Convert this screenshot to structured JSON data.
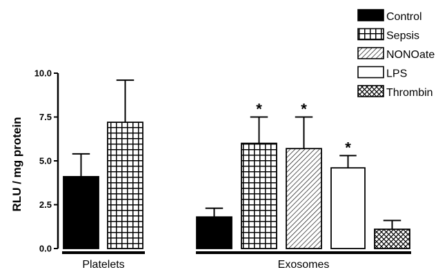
{
  "chart_data": {
    "type": "bar",
    "ylabel": "RLU / mg protein",
    "ylim": [
      0,
      10
    ],
    "yticks": [
      "0.0",
      "2.5",
      "5.0",
      "7.5",
      "10.0"
    ],
    "groups": [
      {
        "name": "Platelets",
        "bars": [
          {
            "series": "Control",
            "value": 4.1,
            "error": 1.3,
            "star": ""
          },
          {
            "series": "Sepsis",
            "value": 7.2,
            "error": 2.4,
            "star": ""
          }
        ]
      },
      {
        "name": "Exosomes",
        "bars": [
          {
            "series": "Control",
            "value": 1.8,
            "error": 0.5,
            "star": ""
          },
          {
            "series": "Sepsis",
            "value": 6.0,
            "error": 1.5,
            "star": "*"
          },
          {
            "series": "NONOate",
            "value": 5.7,
            "error": 1.8,
            "star": "*"
          },
          {
            "series": "LPS",
            "value": 4.6,
            "error": 0.7,
            "star": "*"
          },
          {
            "series": "Thrombin",
            "value": 1.1,
            "error": 0.5,
            "star": ""
          }
        ]
      }
    ],
    "legend": {
      "position": "top-right",
      "entries": [
        {
          "label": "Control",
          "pattern": "solid"
        },
        {
          "label": "Sepsis",
          "pattern": "grid"
        },
        {
          "label": "NONOate",
          "pattern": "diagonal"
        },
        {
          "label": "LPS",
          "pattern": "empty"
        },
        {
          "label": "Thrombin",
          "pattern": "crosshatch"
        }
      ]
    },
    "colors": {
      "ink": "#000000",
      "background": "#ffffff"
    }
  }
}
